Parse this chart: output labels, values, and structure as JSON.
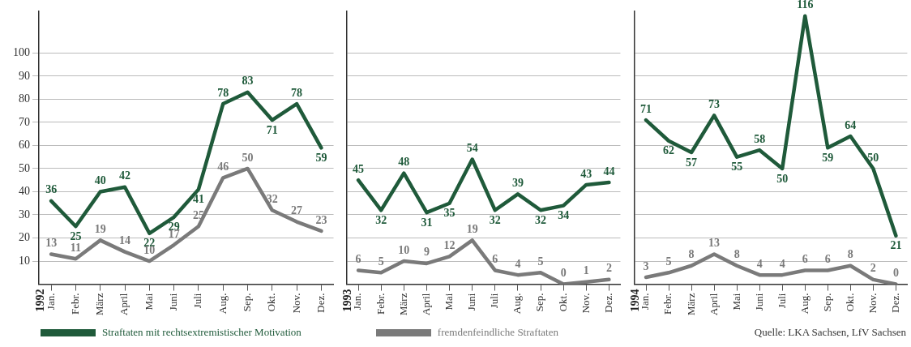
{
  "chart_data": [
    {
      "type": "line",
      "categories": [
        "Jan.",
        "Febr.",
        "März",
        "April",
        "Mai",
        "Juni",
        "Juli",
        "Aug.",
        "Sep.",
        "Okt.",
        "Nov.",
        "Dez."
      ],
      "ylim": [
        0,
        118
      ],
      "yticks": [
        10,
        20,
        30,
        40,
        50,
        60,
        70,
        80,
        90,
        100
      ],
      "grid": "y",
      "legend": "bottom",
      "data_labels": true,
      "marker": "none",
      "annotations": [
        "1992"
      ],
      "series": [
        {
          "name": "Straftaten mit rechtsextremistischer Motivation",
          "color": "#1f5a3a",
          "values": [
            36,
            25,
            40,
            42,
            22,
            29,
            41,
            78,
            83,
            71,
            78,
            59
          ]
        },
        {
          "name": "fremdenfeindliche Straftaten",
          "color": "#7a7a7a",
          "values": [
            13,
            11,
            19,
            14,
            10,
            17,
            25,
            46,
            50,
            32,
            27,
            23
          ]
        }
      ]
    },
    {
      "type": "line",
      "categories": [
        "Jan.",
        "Febr.",
        "März",
        "April",
        "Mai",
        "Juni",
        "Juli",
        "Aug.",
        "Sep.",
        "Okt.",
        "Nov.",
        "Dez."
      ],
      "ylim": [
        0,
        118
      ],
      "yticks": [
        10,
        20,
        30,
        40,
        50,
        60,
        70,
        80,
        90,
        100
      ],
      "grid": "y",
      "tick_labels": "x",
      "data_labels": true,
      "marker": "none",
      "annotations": [
        "1993"
      ],
      "series": [
        {
          "color": "#1f5a3a",
          "values": [
            45,
            32,
            48,
            31,
            35,
            54,
            32,
            39,
            32,
            34,
            43,
            44
          ]
        },
        {
          "color": "#7a7a7a",
          "values": [
            6,
            5,
            10,
            9,
            12,
            19,
            6,
            4,
            5,
            0,
            1,
            2
          ]
        }
      ]
    },
    {
      "type": "line",
      "categories": [
        "Jan.",
        "Febr.",
        "März",
        "April",
        "Mai",
        "Juni",
        "Juli",
        "Aug.",
        "Sep.",
        "Okt.",
        "Nov.",
        "Dez."
      ],
      "ylim": [
        0,
        118
      ],
      "yticks": [
        10,
        20,
        30,
        40,
        50,
        60,
        70,
        80,
        90,
        100
      ],
      "grid": "y",
      "tick_labels": "x",
      "data_labels": true,
      "marker": "none",
      "annotations": [
        "1994",
        "Quelle: LKA Sachsen, LfV Sachsen"
      ],
      "series": [
        {
          "color": "#1f5a3a",
          "values": [
            71,
            62,
            57,
            73,
            55,
            58,
            50,
            116,
            59,
            64,
            50,
            21
          ]
        },
        {
          "color": "#7a7a7a",
          "values": [
            3,
            5,
            8,
            13,
            8,
            4,
            4,
            6,
            6,
            8,
            2,
            0
          ]
        }
      ]
    }
  ]
}
